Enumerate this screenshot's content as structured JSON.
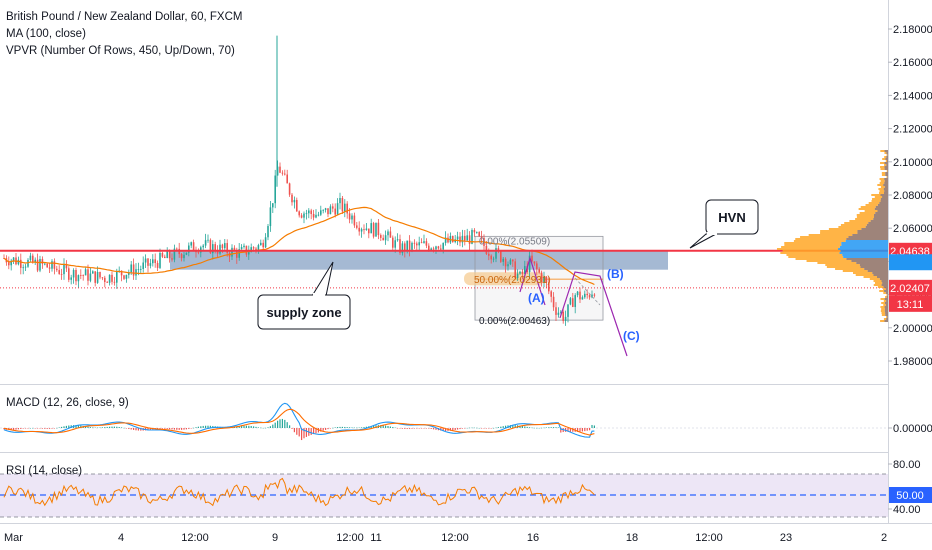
{
  "legend": {
    "title": "British Pound / New Zealand Dollar, 60, FXCM",
    "ma": "MA (100, close)",
    "vpvr": "VPVR (Number Of Rows, 450, Up/Down, 70)",
    "macd": "MACD (12, 26, close, 9)",
    "rsi": "RSI (14, close)"
  },
  "axes": {
    "price_ticks": [
      "2.18000",
      "2.16000",
      "2.14000",
      "2.12000",
      "2.10000",
      "2.08000",
      "2.06000",
      "2.04000",
      "2.02000",
      "2.00000",
      "1.98000"
    ],
    "macd_ticks": [
      "0.00000"
    ],
    "rsi_ticks": [
      "80.00",
      "40.00"
    ],
    "time_ticks": [
      "Mar",
      "4",
      "12:00",
      "9",
      "12:00",
      "11",
      "12:00",
      "16",
      "18",
      "12:00",
      "23",
      "2"
    ]
  },
  "badges": {
    "hvn_price": "2.04638",
    "last_price": "2.02407",
    "countdown": "13:11",
    "rsi_value": "50.00"
  },
  "annotations": {
    "hvn": "HVN",
    "supply_zone": "supply zone",
    "wave_a": "(A)",
    "wave_b": "(B)",
    "wave_c": "(C)",
    "fib_top": "0.00%(2.05509)",
    "fib_mid": "50.00%(2.02931)",
    "fib_bottom": "0.00%(2.00463)"
  },
  "colors": {
    "up": "#26a69a",
    "down": "#ef5350",
    "ma": "#f57c00",
    "hvn_line": "#f23645",
    "supply_zone": "#5b7fae",
    "wave": "#9c27b0",
    "macd_line": "#2196f3",
    "signal_line": "#ff6d00",
    "rsi_line": "#f57c00",
    "rsi_band": "#e1d5f0"
  },
  "chart_data": {
    "type": "candlestick",
    "symbol": "GBPNZD",
    "timeframe": "60",
    "price_range": [
      1.97,
      2.185
    ],
    "approx_price_path": [
      {
        "x": "Mar",
        "price": 2.04
      },
      {
        "x": "4",
        "price": 2.035
      },
      {
        "x": "12:00",
        "price": 2.045
      },
      {
        "x": "9",
        "price": 2.098
      },
      {
        "x": "11",
        "price": 2.055
      },
      {
        "x": "12:00",
        "price": 2.05
      },
      {
        "x": "16",
        "price": 2.025
      },
      {
        "x": "16",
        "price": 2.005
      },
      {
        "x": "18",
        "price": 2.024
      }
    ],
    "spike_high": 2.176,
    "ma_100_end": 2.04,
    "hvn_level": 2.04638,
    "last_price": 2.02407,
    "supply_zone": [
      2.035,
      2.046
    ],
    "fib_levels": [
      2.05509,
      2.02931,
      2.00463
    ],
    "rsi_levels": [
      80,
      50,
      40
    ]
  }
}
